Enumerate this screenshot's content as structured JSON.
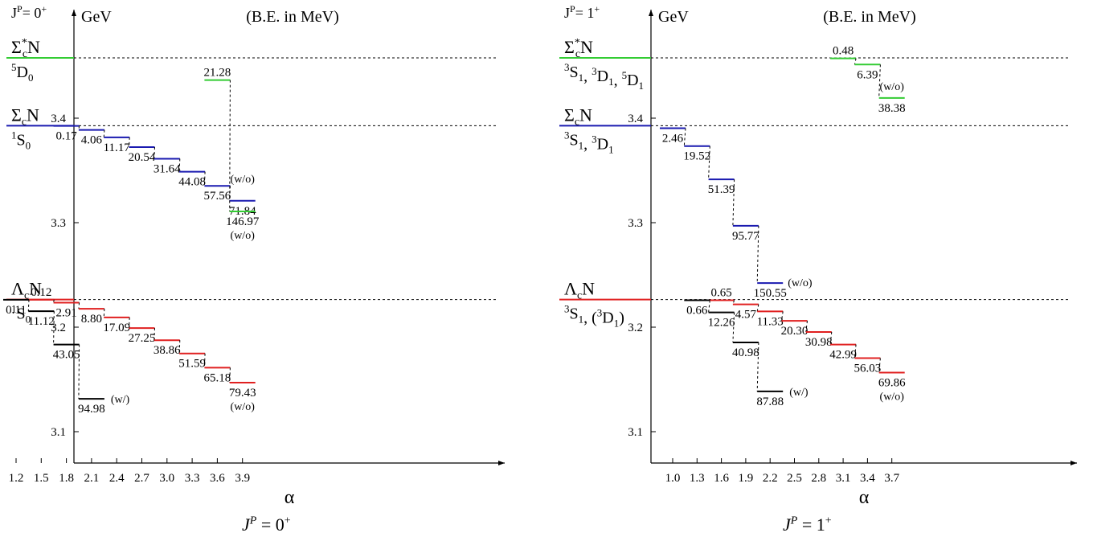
{
  "colors": {
    "green": "#33cc33",
    "blue": "#1a1ab0",
    "red": "#e02020",
    "black": "#000000"
  },
  "chart_data": [
    {
      "type": "level-diagram",
      "jp_label": "J",
      "jp_sup": "P",
      "jp_value": "= 0",
      "jp_parity": "+",
      "ylabel": "GeV",
      "header": "(B.E. in MeV)",
      "xlabel": "α",
      "caption": "J",
      "caption_sup": "P",
      "caption_value": " = 0",
      "caption_parity": "+",
      "ylim": [
        3.07,
        3.47
      ],
      "yticks": [
        3.1,
        3.2,
        3.3,
        3.4
      ],
      "ytick_labels": [
        "3.1",
        "3.2",
        "3.3",
        "3.4"
      ],
      "categories": [
        "1.2",
        "1.5",
        "1.8",
        "2.1",
        "2.4",
        "2.7",
        "3.0",
        "3.3",
        "3.6",
        "3.9"
      ],
      "thresholds": [
        {
          "name": "ΣcN",
          "wave": "1S0",
          "color": "blue",
          "energy": 3.3928
        },
        {
          "name": "Σc*N",
          "wave": "5D0",
          "color": "green",
          "energy": 3.4577
        },
        {
          "name": "ΛcN",
          "wave": "1S0",
          "color": "red",
          "energy": 3.2264
        }
      ],
      "series": [
        {
          "color": "blue",
          "threshold": 3.3928,
          "x": [
            1.8,
            2.1,
            2.4,
            2.7,
            3.0,
            3.3,
            3.6,
            3.9
          ],
          "be": [
            0.17,
            4.06,
            11.17,
            20.54,
            31.64,
            44.08,
            57.56,
            71.84
          ],
          "labels": [
            "0.17",
            "4.06",
            "11.17",
            "20.54",
            "31.64",
            "44.08",
            "57.56",
            "71.84"
          ],
          "notes": [
            "",
            "",
            "",
            "",
            "",
            "",
            "",
            "(w/o)"
          ]
        },
        {
          "color": "green",
          "threshold": 3.4577,
          "x": [
            3.6,
            3.9
          ],
          "be": [
            21.28,
            146.97
          ],
          "labels": [
            "21.28",
            "146.97"
          ],
          "notes": [
            "",
            "(w/o)"
          ]
        },
        {
          "color": "red",
          "threshold": 3.2264,
          "x": [
            1.5,
            1.8,
            2.1,
            2.4,
            2.7,
            3.0,
            3.3,
            3.6,
            3.9
          ],
          "be": [
            0.12,
            2.91,
            8.8,
            17.09,
            27.25,
            38.86,
            51.59,
            65.18,
            79.43
          ],
          "labels": [
            "0.12",
            "2.91",
            "8.80",
            "17.09",
            "27.25",
            "38.86",
            "51.59",
            "65.18",
            "79.43"
          ],
          "notes": [
            "",
            "",
            "",
            "",
            "",
            "",
            "",
            "",
            "(w/o)"
          ]
        },
        {
          "color": "black",
          "threshold": 3.2264,
          "x": [
            1.2,
            1.5,
            1.8,
            2.1
          ],
          "be": [
            0.11,
            11.12,
            43.05,
            94.98
          ],
          "labels": [
            "0.11",
            "11.12",
            "43.05",
            "94.98"
          ],
          "notes": [
            "",
            "",
            "",
            "(w/)"
          ]
        }
      ]
    },
    {
      "type": "level-diagram",
      "jp_label": "J",
      "jp_sup": "P",
      "jp_value": "= 1",
      "jp_parity": "+",
      "ylabel": "GeV",
      "header": "(B.E. in MeV)",
      "xlabel": "α",
      "caption": "J",
      "caption_sup": "P",
      "caption_value": " = 1",
      "caption_parity": "+",
      "ylim": [
        3.07,
        3.47
      ],
      "yticks": [
        3.1,
        3.2,
        3.3,
        3.4
      ],
      "ytick_labels": [
        "3.1",
        "3.2",
        "3.3",
        "3.4"
      ],
      "categories": [
        "1.0",
        "1.3",
        "1.6",
        "1.9",
        "2.2",
        "2.5",
        "2.8",
        "3.1",
        "3.4",
        "3.7"
      ],
      "thresholds": [
        {
          "name": "ΣcN",
          "wave": "3S1, 3D1",
          "color": "blue",
          "energy": 3.3928
        },
        {
          "name": "Σc*N",
          "wave": "3S1,3D1,5D1",
          "color": "green",
          "energy": 3.4577
        },
        {
          "name": "ΛcN",
          "wave": "3S1, (3D1)",
          "color": "red",
          "energy": 3.2264
        }
      ],
      "series": [
        {
          "color": "blue",
          "threshold": 3.3928,
          "x": [
            1.0,
            1.3,
            1.6,
            1.9,
            2.2
          ],
          "be": [
            2.46,
            19.52,
            51.39,
            95.77,
            150.55
          ],
          "labels": [
            "2.46",
            "19.52",
            "51.39",
            "95.77",
            "150.55"
          ],
          "notes": [
            "",
            "",
            "",
            "",
            "(w/o)"
          ]
        },
        {
          "color": "green",
          "threshold": 3.4577,
          "x": [
            3.1,
            3.4,
            3.7
          ],
          "be": [
            0.48,
            6.39,
            38.38
          ],
          "labels": [
            "0.48",
            "6.39",
            "38.38"
          ],
          "notes": [
            "",
            "",
            "(w/o)"
          ]
        },
        {
          "color": "red",
          "threshold": 3.2264,
          "x": [
            1.6,
            1.9,
            2.2,
            2.5,
            2.8,
            3.1,
            3.4,
            3.7
          ],
          "be": [
            0.65,
            4.57,
            11.33,
            20.3,
            30.98,
            42.99,
            56.03,
            69.86
          ],
          "labels": [
            "0.65",
            "4.57",
            "11.33",
            "20.30",
            "30.98",
            "42.99",
            "56.03",
            "69.86"
          ],
          "notes": [
            "",
            "",
            "",
            "",
            "",
            "",
            "",
            "(w/o)"
          ]
        },
        {
          "color": "black",
          "threshold": 3.2264,
          "x": [
            1.3,
            1.6,
            1.9,
            2.2
          ],
          "be": [
            0.66,
            12.26,
            40.98,
            87.88
          ],
          "labels": [
            "0.66",
            "12.26",
            "40.98",
            "87.88"
          ],
          "notes": [
            "",
            "",
            "",
            "(w/)"
          ]
        }
      ]
    }
  ]
}
